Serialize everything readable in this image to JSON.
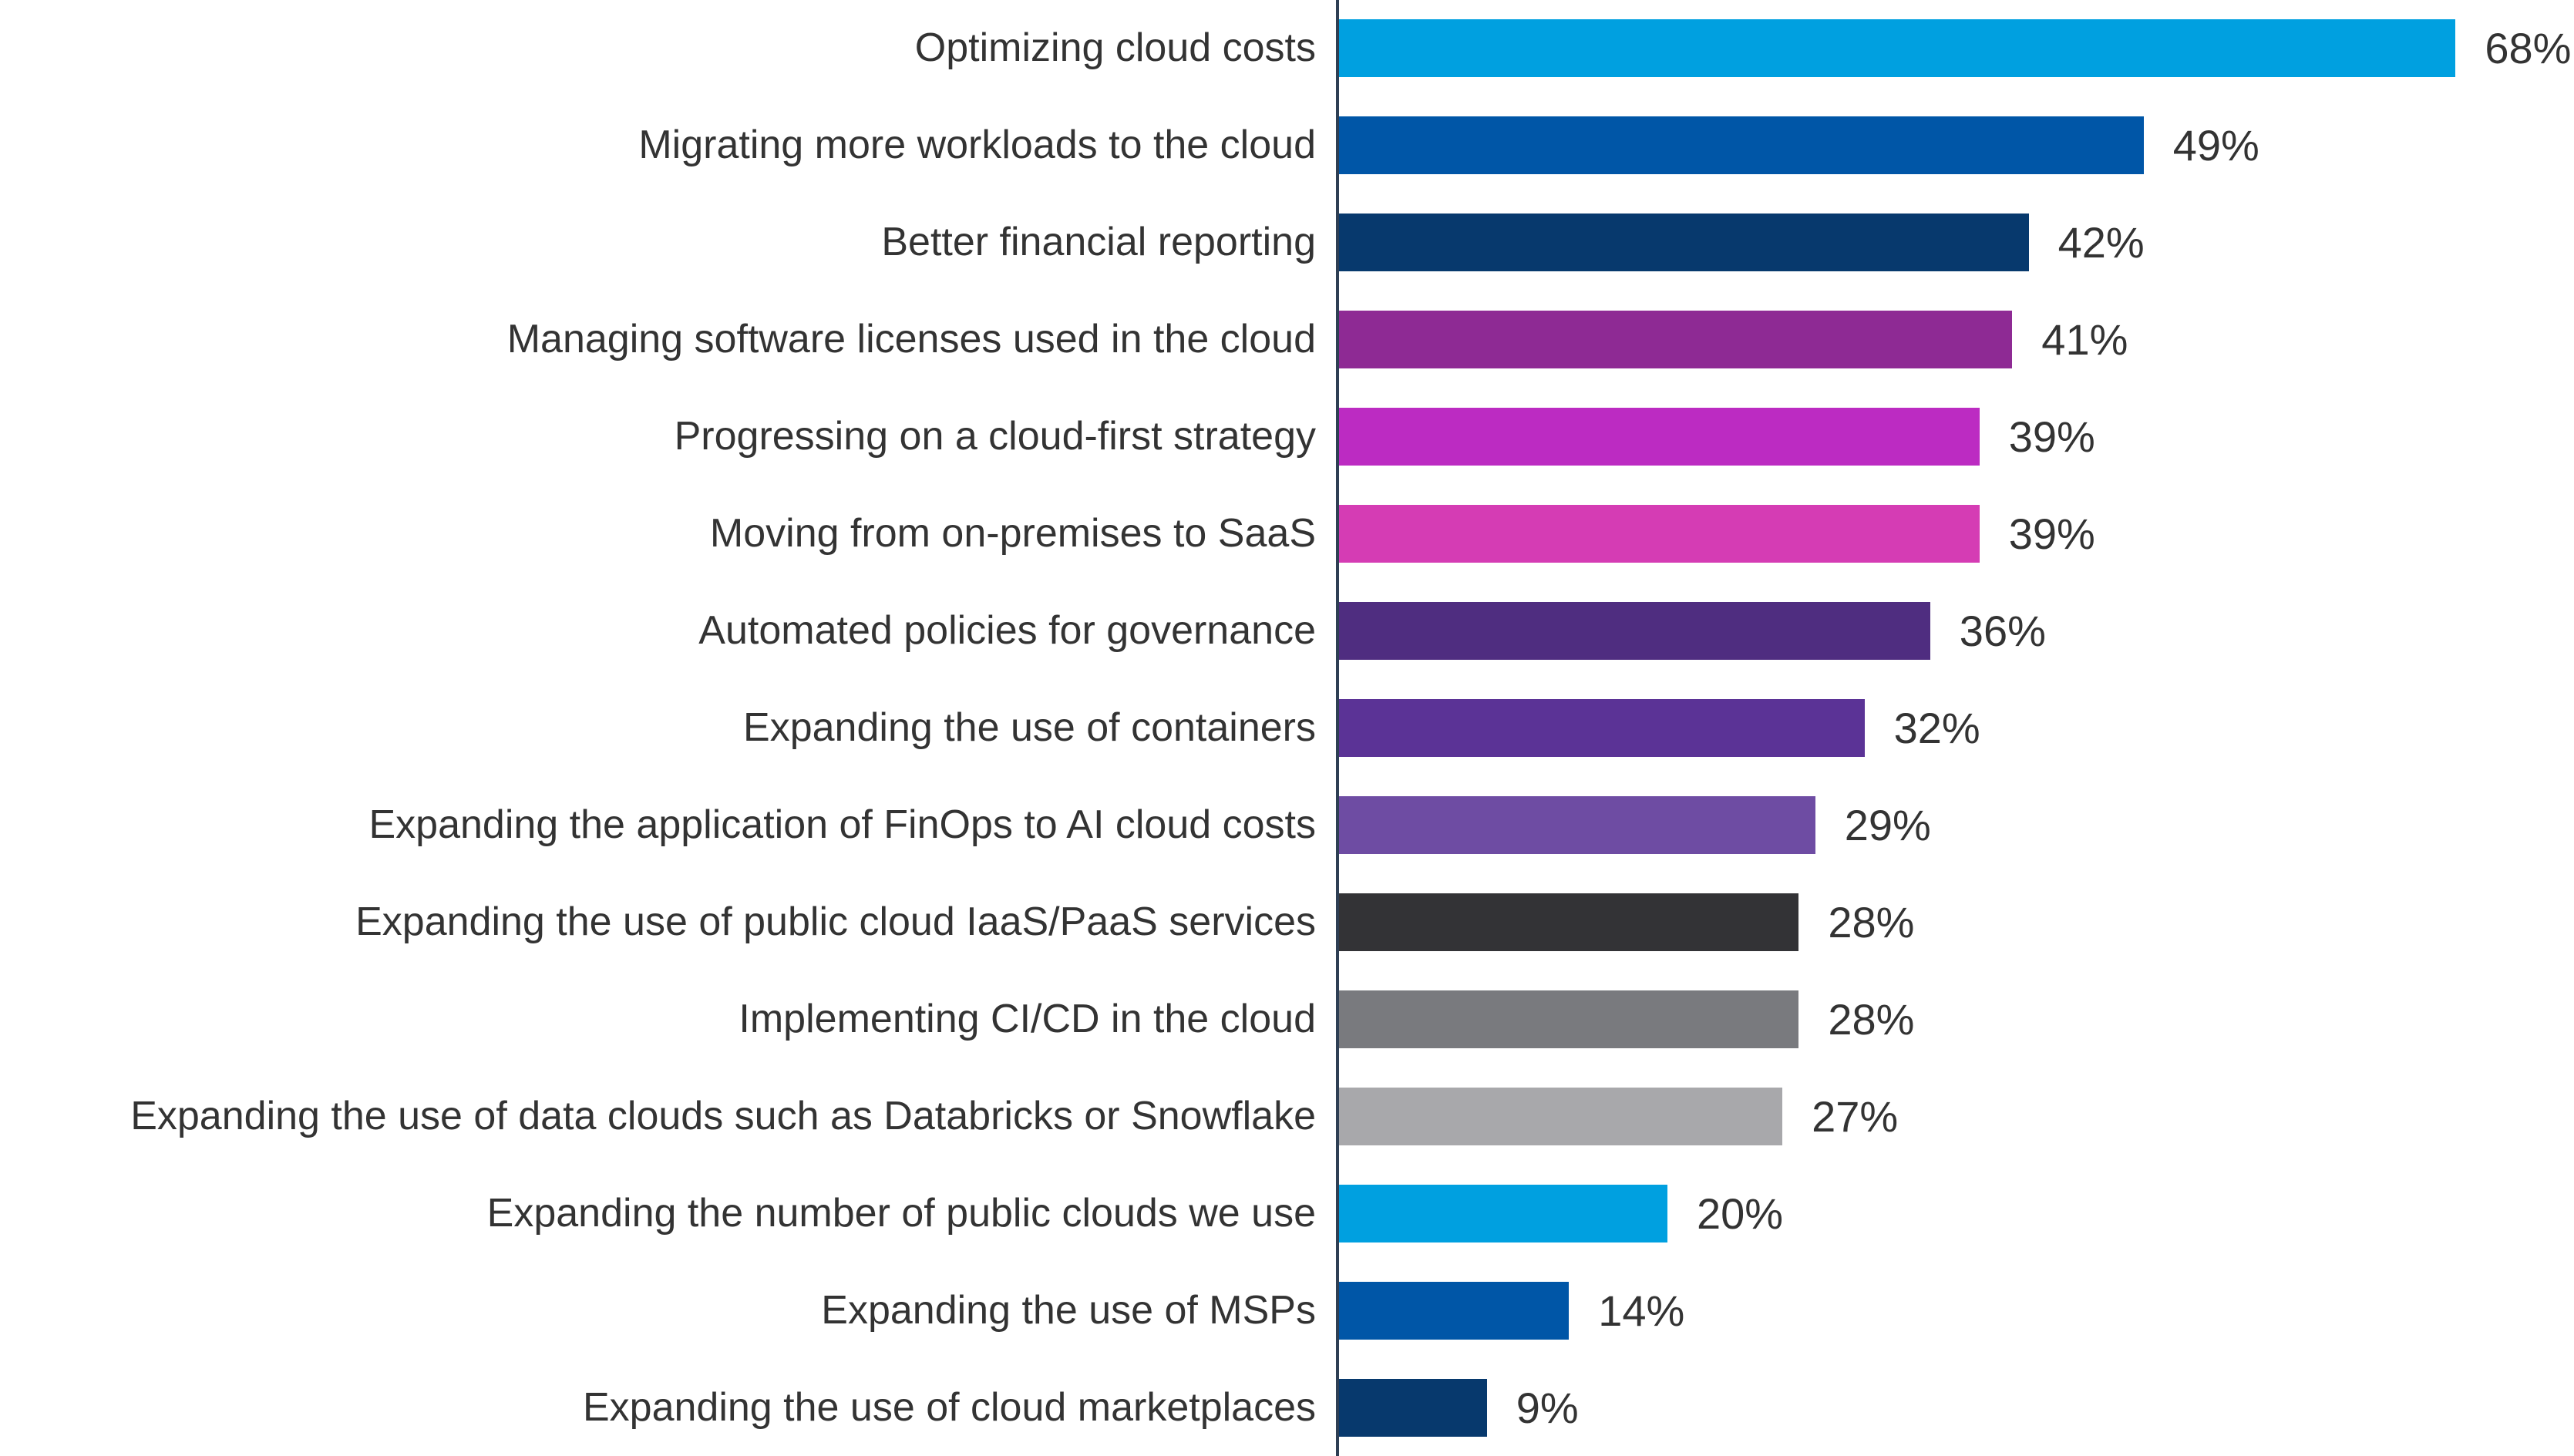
{
  "chart_data": {
    "type": "bar",
    "orientation": "horizontal",
    "title": "",
    "xlabel": "",
    "ylabel": "",
    "xlim": [
      0,
      75
    ],
    "grid": false,
    "legend": null,
    "background_color": "#FFFFFF",
    "axis_line_color": "#2E3F54",
    "text_color": "#333333",
    "categories": [
      "Optimizing cloud costs",
      "Migrating more workloads to the cloud",
      "Better financial reporting",
      "Managing software licenses used in the cloud",
      "Progressing on a cloud-first strategy",
      "Moving from on-premises to SaaS",
      "Automated policies for governance",
      "Expanding the use of containers",
      "Expanding the application of FinOps to AI cloud costs",
      "Expanding the use of public cloud IaaS/PaaS services",
      "Implementing CI/CD in the cloud",
      "Expanding the use of data clouds such as Databricks or Snowflake",
      "Expanding the number of public clouds we use",
      "Expanding the use of MSPs",
      "Expanding the use of cloud marketplaces"
    ],
    "values": [
      68,
      49,
      42,
      41,
      39,
      39,
      36,
      32,
      29,
      28,
      28,
      27,
      20,
      14,
      9
    ],
    "value_labels": [
      "68%",
      "49%",
      "42%",
      "41%",
      "39%",
      "39%",
      "36%",
      "32%",
      "29%",
      "28%",
      "28%",
      "27%",
      "20%",
      "14%",
      "9%"
    ],
    "bar_colors": [
      "#00A0E0",
      "#0056A7",
      "#07396D",
      "#8E2A94",
      "#BC2BC2",
      "#D53CB4",
      "#4F2D80",
      "#5B3396",
      "#6E4CA3",
      "#333336",
      "#797A7E",
      "#A8A8AB",
      "#00A0E0",
      "#0056A7",
      "#07396D"
    ]
  }
}
